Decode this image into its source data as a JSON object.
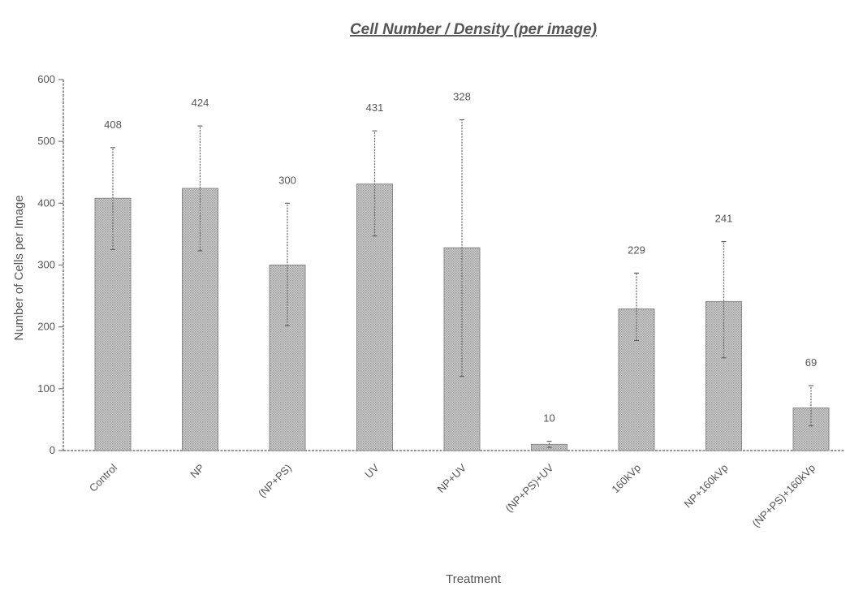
{
  "chart_data": {
    "type": "bar",
    "title": "Cell Number / Density (per image)",
    "xlabel": "Treatment",
    "ylabel": "Number of Cells per Image",
    "ylim": [
      0,
      600
    ],
    "yticks": [
      0,
      100,
      200,
      300,
      400,
      500,
      600
    ],
    "grid": false,
    "legend": "none",
    "categories": [
      "Control",
      "NP",
      "(NP+PS)",
      "UV",
      "NP+UV",
      "(NP+PS)+UV",
      "160kVp",
      "NP+160kVp",
      "(NP+PS)+160kVp"
    ],
    "values": [
      408,
      424,
      300,
      431,
      328,
      10,
      229,
      241,
      69
    ],
    "error_bars": [
      [
        325,
        490
      ],
      [
        323,
        525
      ],
      [
        202,
        400
      ],
      [
        347,
        517
      ],
      [
        120,
        535
      ],
      [
        5,
        15
      ],
      [
        178,
        287
      ],
      [
        150,
        338
      ],
      [
        40,
        105
      ]
    ],
    "data_labels": [
      "408",
      "424",
      "300",
      "431",
      "328",
      "10",
      "229",
      "241",
      "69"
    ]
  }
}
